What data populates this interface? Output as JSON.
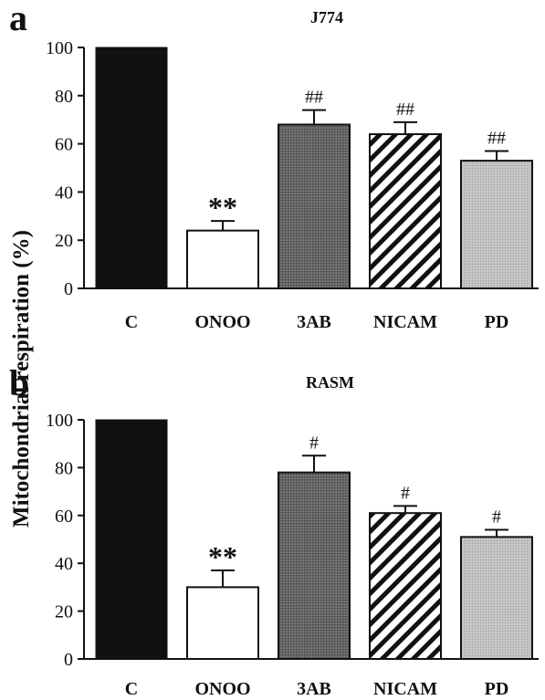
{
  "ylabel": "Mitochondrial respiration (%)",
  "chart_data": [
    {
      "type": "bar",
      "panel": "a",
      "title": "J774",
      "categories": [
        "C",
        "ONOO",
        "3AB",
        "NICAM",
        "PD"
      ],
      "values": [
        100,
        24,
        68,
        64,
        53
      ],
      "errors": [
        0,
        4,
        6,
        5,
        4
      ],
      "annotations": [
        "",
        "**",
        "##",
        "##",
        "##"
      ],
      "fills": [
        "solid-black",
        "white",
        "dark-gray",
        "diagonal-hatch",
        "light-gray"
      ],
      "ylim": [
        0,
        100
      ],
      "yticks": [
        0,
        20,
        40,
        60,
        80,
        100
      ],
      "ylabel": "Mitochondrial respiration (%)",
      "xlabel": ""
    },
    {
      "type": "bar",
      "panel": "b",
      "title": "RASM",
      "categories": [
        "C",
        "ONOO",
        "3AB",
        "NICAM",
        "PD"
      ],
      "values": [
        100,
        30,
        78,
        61,
        51
      ],
      "errors": [
        0,
        7,
        7,
        3,
        3
      ],
      "annotations": [
        "",
        "**",
        "#",
        "#",
        "#"
      ],
      "fills": [
        "solid-black",
        "white",
        "dark-gray",
        "diagonal-hatch",
        "light-gray"
      ],
      "ylim": [
        0,
        100
      ],
      "yticks": [
        0,
        20,
        40,
        60,
        80,
        100
      ],
      "ylabel": "Mitochondrial respiration (%)",
      "xlabel": ""
    }
  ]
}
